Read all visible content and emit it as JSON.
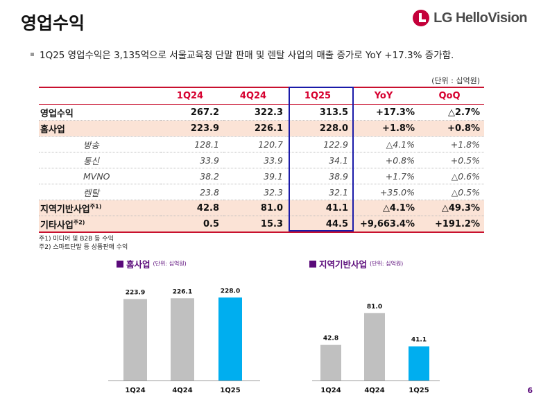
{
  "header": {
    "title": "영업수익",
    "logo_text": "LG HelloVision"
  },
  "summary": "1Q25 영업수익은 3,135억으로 서울교육청 단말 판매 및 렌탈 사업의 매출 증가로 YoY +17.3% 증가함.",
  "unit_label": "(단위 : 십억원)",
  "table": {
    "columns": [
      "",
      "1Q24",
      "4Q24",
      "1Q25",
      "YoY",
      "QoQ"
    ],
    "rows": [
      {
        "label": "영업수익",
        "sup": "",
        "style": "bold",
        "cells": [
          "267.2",
          "322.3",
          "313.5",
          "+17.3%",
          "△2.7%"
        ]
      },
      {
        "label": "홈사업",
        "sup": "",
        "style": "bold shade",
        "cells": [
          "223.9",
          "226.1",
          "228.0",
          "+1.8%",
          "+0.8%"
        ]
      },
      {
        "label": "방송",
        "sup": "",
        "style": "sub",
        "cells": [
          "128.1",
          "120.7",
          "122.9",
          "△4.1%",
          "+1.8%"
        ]
      },
      {
        "label": "통신",
        "sup": "",
        "style": "sub",
        "cells": [
          "33.9",
          "33.9",
          "34.1",
          "+0.8%",
          "+0.5%"
        ]
      },
      {
        "label": "MVNO",
        "sup": "",
        "style": "sub",
        "cells": [
          "38.2",
          "39.1",
          "38.9",
          "+1.7%",
          "△0.6%"
        ]
      },
      {
        "label": "렌탈",
        "sup": "",
        "style": "sub",
        "cells": [
          "23.8",
          "32.3",
          "32.1",
          "+35.0%",
          "△0.5%"
        ]
      },
      {
        "label": "지역기반사업",
        "sup": "주1)",
        "style": "bold shade",
        "cells": [
          "42.8",
          "81.0",
          "41.1",
          "△4.1%",
          "△49.3%"
        ]
      },
      {
        "label": "기타사업",
        "sup": "주2)",
        "style": "bold shade last",
        "cells": [
          "0.5",
          "15.3",
          "44.5",
          "+9,663.4%",
          "+191.2%"
        ]
      }
    ]
  },
  "footnotes": [
    "주1) 미디어 및 B2B 등 수익",
    "주2) 스마트단말 등 상품판매 수익"
  ],
  "colors": {
    "bar_gray": "#c0c0c0",
    "bar_highlight": "#00aeef",
    "title_purple": "#5a0a7a",
    "header_red": "#d6002f"
  },
  "chart_data": [
    {
      "type": "bar",
      "title": "홈사업",
      "unit": "(단위: 십억원)",
      "categories": [
        "1Q24",
        "4Q24",
        "1Q25"
      ],
      "values": [
        223.9,
        226.1,
        228.0
      ],
      "labels": [
        "223.9",
        "226.1",
        "228.0"
      ],
      "highlight_index": 2,
      "ylim": [
        0,
        240
      ]
    },
    {
      "type": "bar",
      "title": "지역기반사업",
      "unit": "(단위: 십억원)",
      "categories": [
        "1Q24",
        "4Q24",
        "1Q25"
      ],
      "values": [
        42.8,
        81.0,
        41.1
      ],
      "labels": [
        "42.8",
        "81.0",
        "41.1"
      ],
      "highlight_index": 2,
      "ylim": [
        0,
        100
      ]
    }
  ],
  "page_number": "6"
}
